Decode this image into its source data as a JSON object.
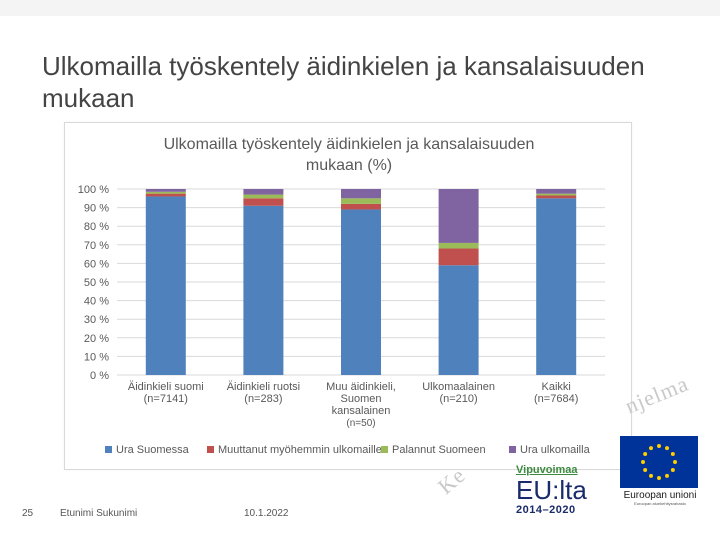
{
  "slide": {
    "title_line1": "Ulkomailla työskentely äidinkielen ja kansalaisuuden",
    "title_line2": "mukaan",
    "page_number": "25",
    "author": "Etunimi Sukunimi",
    "date": "10.1.2022",
    "watermark_right": "njelma",
    "watermark_left": "Ke"
  },
  "logos": {
    "vipuvoimaa_title": "Vipuvoimaa",
    "vipuvoimaa_eu": "EU:lta",
    "vipuvoimaa_years": "2014–2020",
    "eu_name": "Euroopan unioni",
    "eu_fund": "Euroopan aluekehitysrahasto"
  },
  "colors": {
    "ura_suomessa": "#4f81bd",
    "muuttanut": "#c0504d",
    "palannut": "#9bbb59",
    "ura_ulkomailla": "#8064a2",
    "grid": "#d9d9d9",
    "text": "#595959"
  },
  "chart_data": {
    "type": "bar",
    "stacked": true,
    "title_line1": "Ulkomailla työskentely äidinkielen ja kansalaisuuden",
    "title_line2": "mukaan (%)",
    "ylim": [
      0,
      100
    ],
    "yticks": [
      "0 %",
      "10 %",
      "20 %",
      "30 %",
      "40 %",
      "50 %",
      "60 %",
      "70 %",
      "80 %",
      "90 %",
      "100 %"
    ],
    "grid": true,
    "legend_position": "bottom",
    "categories": [
      {
        "label1": "Äidinkieli suomi",
        "label2": "(n=7141)",
        "label3": "",
        "label4": "",
        "label5": ""
      },
      {
        "label1": "Äidinkieli ruotsi",
        "label2": "(n=283)",
        "label3": "",
        "label4": "",
        "label5": ""
      },
      {
        "label1": "Muu äidinkieli,",
        "label2": "Suomen",
        "label3": "kansalainen",
        "label4": "(n=50)",
        "label5": ""
      },
      {
        "label1": "Ulkomaalainen",
        "label2": "(n=210)",
        "label3": "",
        "label4": "",
        "label5": ""
      },
      {
        "label1": "Kaikki",
        "label2": "(n=7684)",
        "label3": "",
        "label4": "",
        "label5": ""
      }
    ],
    "series": [
      {
        "name": "Ura Suomessa",
        "values": [
          96,
          91,
          89,
          59,
          95
        ]
      },
      {
        "name": "Muuttanut myöhemmin ulkomaille",
        "values": [
          1.5,
          4,
          3,
          9,
          1.5
        ]
      },
      {
        "name": "Palannut Suomeen",
        "values": [
          1,
          2,
          3,
          3,
          1
        ]
      },
      {
        "name": "Ura ulkomailla",
        "values": [
          1.5,
          3,
          5,
          29,
          2.5
        ]
      }
    ]
  }
}
